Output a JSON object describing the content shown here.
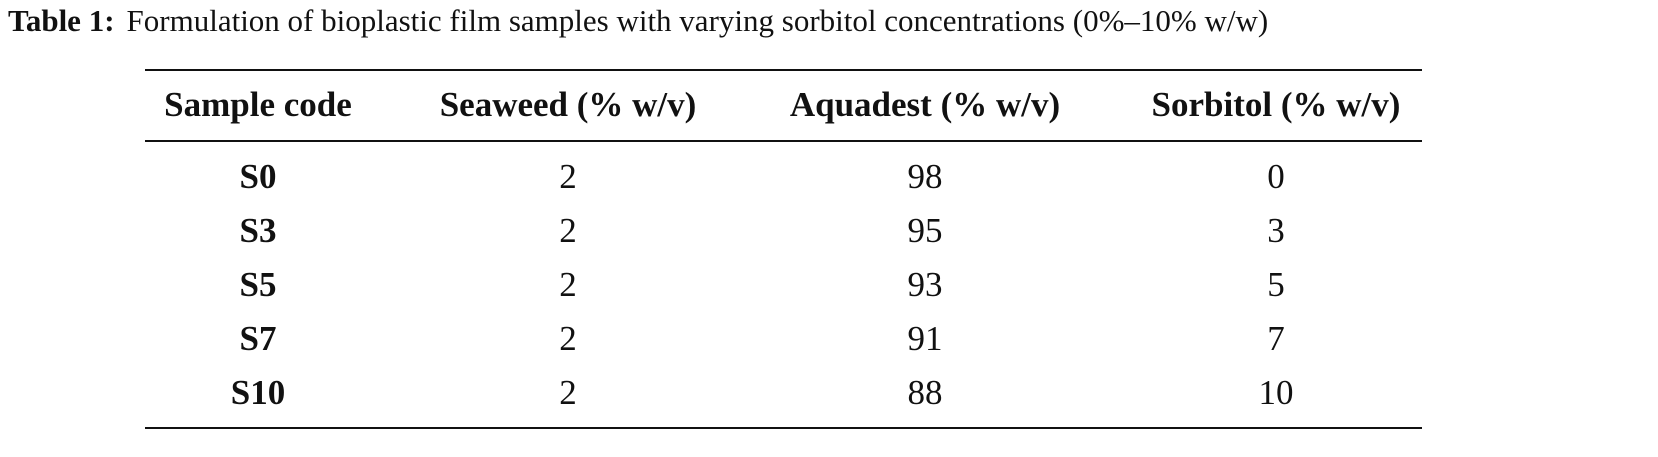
{
  "caption": {
    "label": "Table 1:",
    "text": "Formulation of bioplastic film samples with varying sorbitol concentrations (0%–10% w/w)"
  },
  "table": {
    "headers": [
      "Sample code",
      "Seaweed (% w/v)",
      "Aquadest (% w/v)",
      "Sorbitol (% w/v)"
    ],
    "rows": [
      [
        "S0",
        2,
        98,
        0
      ],
      [
        "S3",
        2,
        95,
        3
      ],
      [
        "S5",
        2,
        93,
        5
      ],
      [
        "S7",
        2,
        91,
        7
      ],
      [
        "S10",
        2,
        88,
        10
      ]
    ]
  }
}
